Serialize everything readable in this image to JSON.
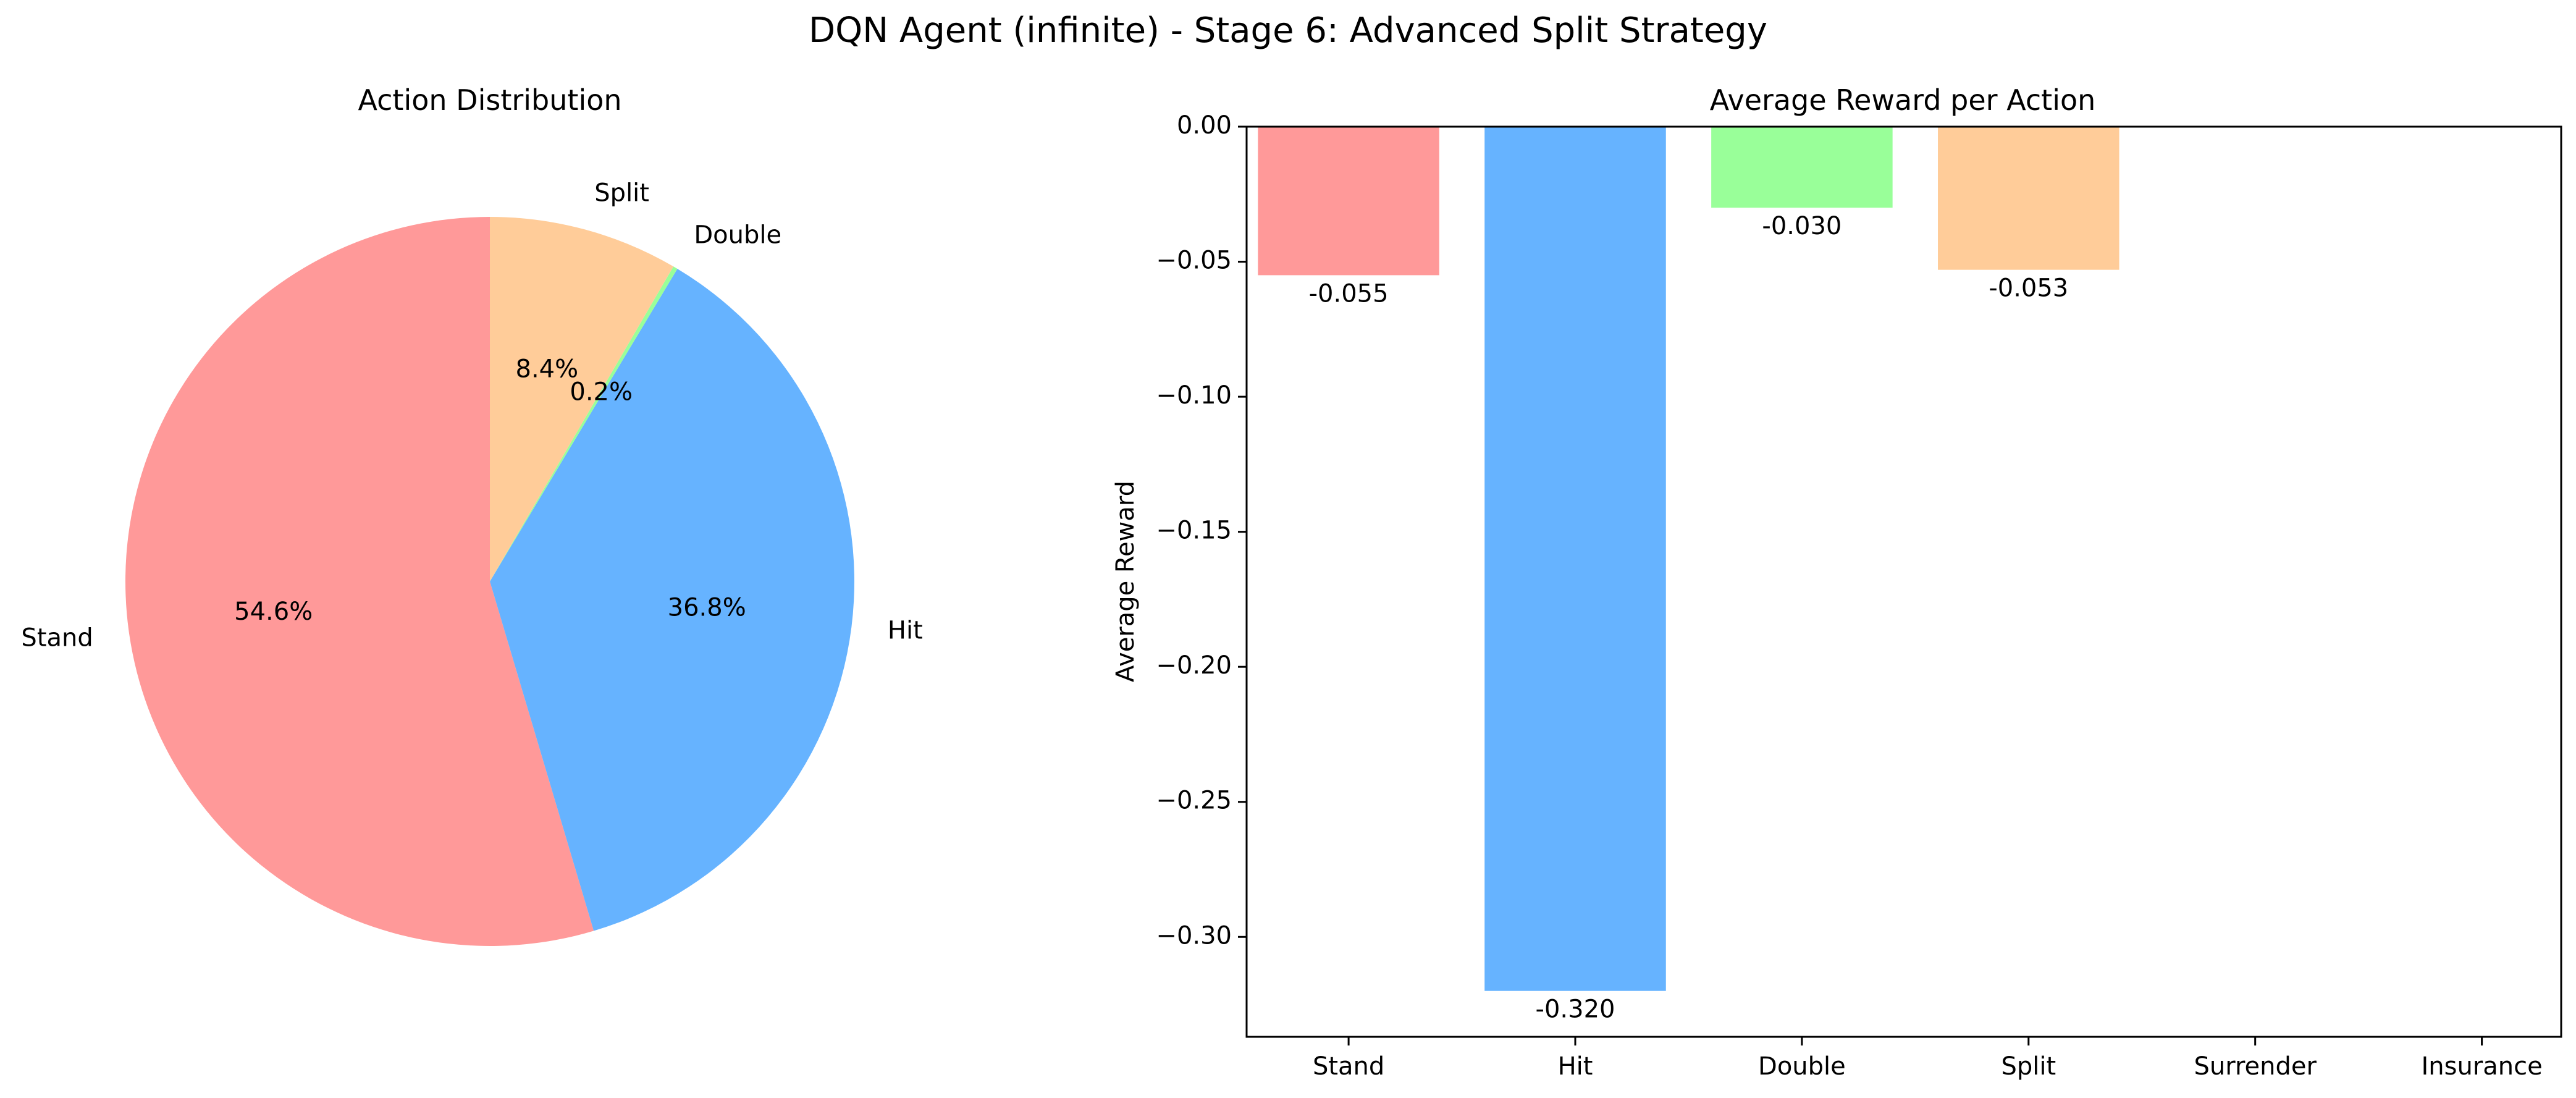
{
  "figure": {
    "suptitle": "DQN Agent (infinite) - Stage 6: Advanced Split Strategy"
  },
  "chart_data": [
    {
      "type": "pie",
      "title": "Action Distribution",
      "slices": [
        {
          "label": "Stand",
          "value": 54.6,
          "pct_label": "54.6%",
          "color": "#ff9999"
        },
        {
          "label": "Hit",
          "value": 36.8,
          "pct_label": "36.8%",
          "color": "#66b3ff"
        },
        {
          "label": "Double",
          "value": 0.2,
          "pct_label": "0.2%",
          "color": "#99ff99"
        },
        {
          "label": "Split",
          "value": 8.4,
          "pct_label": "8.4%",
          "color": "#ffcc99"
        }
      ],
      "start_angle_deg": 90,
      "direction": "counterclockwise"
    },
    {
      "type": "bar",
      "title": "Average Reward per Action",
      "categories": [
        "Stand",
        "Hit",
        "Double",
        "Split",
        "Surrender",
        "Insurance"
      ],
      "values": [
        -0.055,
        -0.32,
        -0.03,
        -0.053,
        null,
        null
      ],
      "value_labels": [
        "-0.055",
        "-0.320",
        "-0.030",
        "-0.053",
        "",
        ""
      ],
      "colors": [
        "#ff9999",
        "#66b3ff",
        "#99ff99",
        "#ffcc99",
        "#ff99cc",
        "#c2c2f0"
      ],
      "xlabel": "",
      "ylabel": "Average Reward",
      "ylim": [
        -0.337,
        0.0
      ],
      "yticks": [
        0.0,
        -0.05,
        -0.1,
        -0.15,
        -0.2,
        -0.25,
        -0.3
      ],
      "ytick_labels": [
        "0.00",
        "−0.05",
        "−0.10",
        "−0.15",
        "−0.20",
        "−0.25",
        "−0.30"
      ],
      "grid": false,
      "legend": "none"
    }
  ]
}
